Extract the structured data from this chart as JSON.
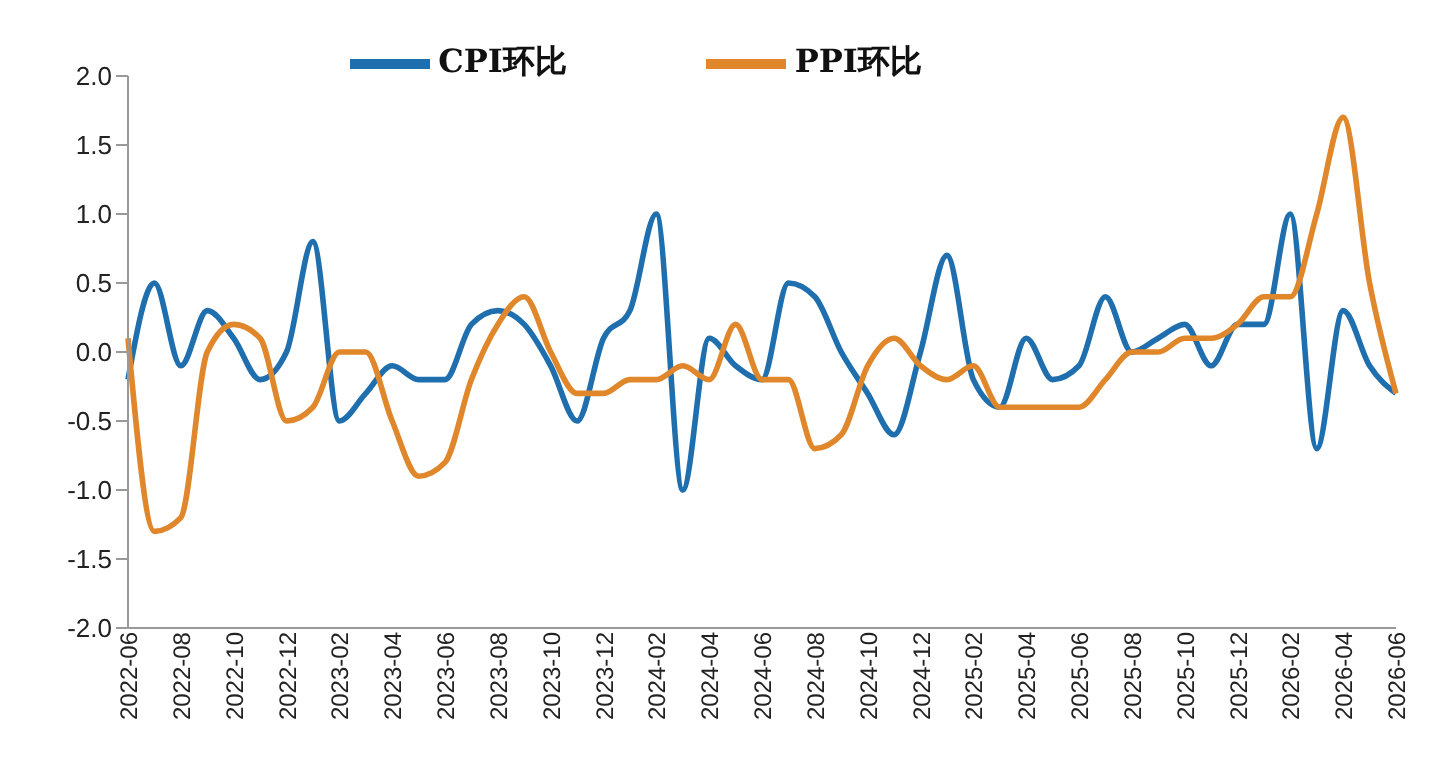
{
  "chart_data": {
    "type": "line",
    "categories": [
      "2022-06",
      null,
      "2022-08",
      null,
      "2022-10",
      null,
      "2022-12",
      null,
      "2023-02",
      null,
      "2023-04",
      null,
      "2023-06",
      null,
      "2023-08",
      null,
      "2023-10",
      null,
      "2023-12",
      null,
      "2024-02",
      null,
      "2024-04",
      null,
      "2024-06",
      null,
      "2024-08",
      null,
      "2024-10",
      null,
      "2024-12",
      null,
      "2025-02",
      null,
      "2025-04",
      null,
      "2025-06",
      null,
      "2025-08",
      null,
      "2025-10",
      null,
      "2025-12",
      null,
      "2026-02",
      null,
      "2026-04",
      null,
      "2026-06"
    ],
    "series": [
      {
        "name": "CPI环比",
        "color": "#1f6fae",
        "values": [
          -0.2,
          0.5,
          -0.1,
          0.3,
          0.1,
          -0.2,
          0.0,
          0.8,
          -0.5,
          -0.3,
          -0.1,
          -0.2,
          -0.2,
          0.2,
          0.3,
          0.2,
          -0.1,
          -0.5,
          0.1,
          0.3,
          1.0,
          -1.0,
          0.1,
          -0.1,
          -0.2,
          0.5,
          0.4,
          0.0,
          -0.3,
          -0.6,
          0.0,
          0.7,
          -0.2,
          -0.4,
          0.1,
          -0.2,
          -0.1,
          0.4,
          0.0,
          0.1,
          0.2,
          -0.1,
          0.2,
          0.2,
          1.0,
          -0.7,
          0.3,
          -0.1,
          -0.3
        ]
      },
      {
        "name": "PPI环比",
        "color": "#e0872b",
        "values": [
          0.1,
          -1.3,
          -1.2,
          0.0,
          0.2,
          0.1,
          -0.5,
          -0.4,
          0.0,
          0.0,
          -0.5,
          -0.9,
          -0.8,
          -0.2,
          0.2,
          0.4,
          0.0,
          -0.3,
          -0.3,
          -0.2,
          -0.2,
          -0.1,
          -0.2,
          0.2,
          -0.2,
          -0.2,
          -0.7,
          -0.6,
          -0.1,
          0.1,
          -0.1,
          -0.2,
          -0.1,
          -0.4,
          -0.4,
          -0.4,
          -0.4,
          -0.2,
          0.0,
          0.0,
          0.1,
          0.1,
          0.2,
          0.4,
          0.4,
          1.0,
          1.7,
          0.5,
          -0.3
        ]
      }
    ],
    "ylim": [
      -2,
      2
    ],
    "yticks": [
      {
        "value": -2,
        "label": "-2.0"
      },
      {
        "value": -1.5,
        "label": "-1.5"
      },
      {
        "value": -1,
        "label": "-1.0"
      },
      {
        "value": -0.5,
        "label": "-0.5"
      },
      {
        "value": 0,
        "label": "0.0"
      },
      {
        "value": 0.5,
        "label": "0.5"
      },
      {
        "value": 1,
        "label": "1.0"
      },
      {
        "value": 1.5,
        "label": "1.5"
      },
      {
        "value": 2,
        "label": "2.0"
      }
    ],
    "grid": false,
    "legend": "top",
    "marker": "none",
    "line_style": "solid"
  }
}
